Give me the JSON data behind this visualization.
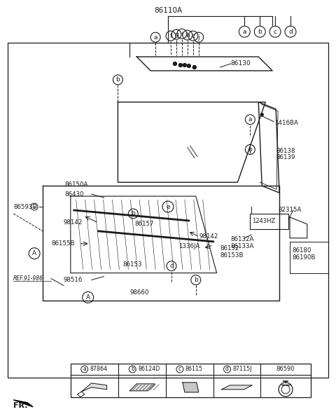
{
  "bg_color": "#ffffff",
  "line_color": "#1a1a1a",
  "text_color": "#1a1a1a",
  "fig_width": 4.8,
  "fig_height": 5.98,
  "dpi": 100,
  "top_label": "86110A",
  "bubble_labels_top": [
    "a",
    "b",
    "c",
    "d"
  ],
  "part_labels_left": [
    "86150A",
    "86593D",
    "86430",
    "98142",
    "86157",
    "98142",
    "86155B",
    "86153",
    "98516",
    "98660",
    "REF.91-986"
  ],
  "part_labels_right": [
    "86130",
    "1416BA",
    "86138",
    "86139",
    "1243HZ",
    "82315A",
    "86132A",
    "86133A",
    "86180",
    "86190B"
  ],
  "bottom_cols": [
    "a",
    "b",
    "c",
    "d",
    ""
  ],
  "bottom_nums": [
    "87864",
    "86124D",
    "86115",
    "87115J",
    "86590"
  ]
}
